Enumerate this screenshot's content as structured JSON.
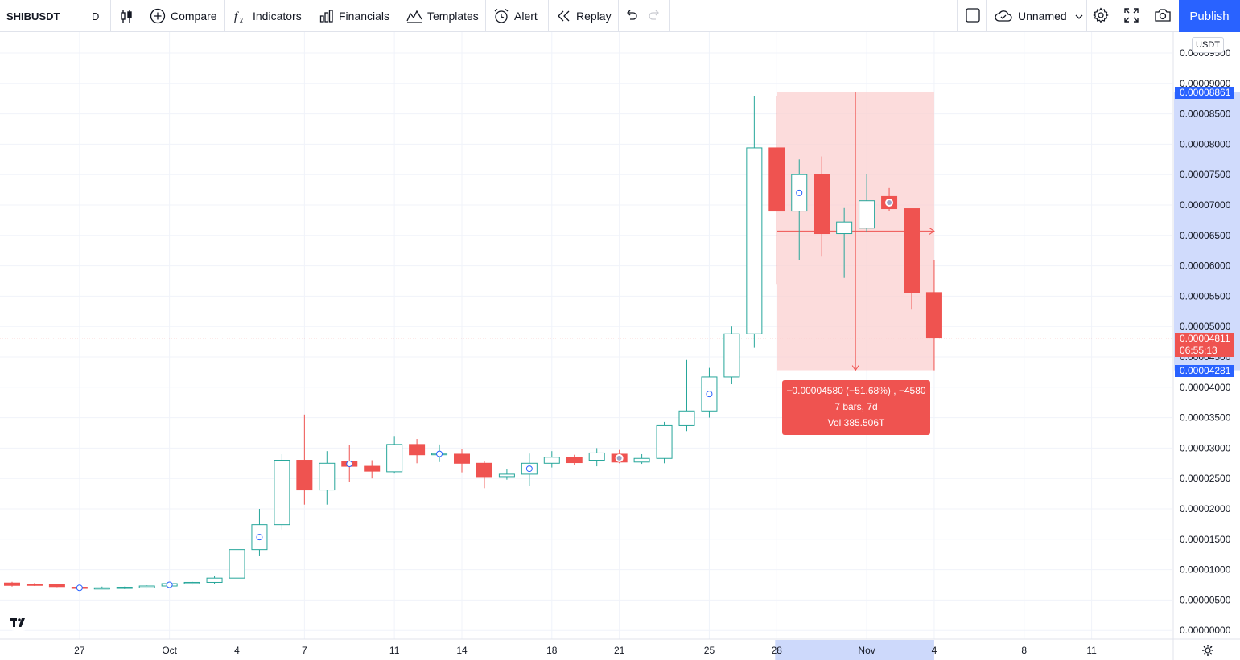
{
  "toolbar": {
    "symbol": "SHIBUSDT",
    "interval": "D",
    "compare_label": "Compare",
    "indicators_label": "Indicators",
    "financials_label": "Financials",
    "templates_label": "Templates",
    "alert_label": "Alert",
    "replay_label": "Replay",
    "layout_name": "Unnamed",
    "publish_label": "Publish"
  },
  "currency_label": "USDT",
  "measure": {
    "line1": "−0.00004580 (−51.68%) , −4580",
    "line2": "7 bars, 7d",
    "line3": "Vol 385.506T"
  },
  "price_tags": {
    "high": "0.00008861",
    "current": "0.00004811",
    "countdown": "06:55:13",
    "low": "0.00004281"
  },
  "colors": {
    "up": "#26a69a",
    "down": "#ef5350",
    "accent": "#2962ff",
    "range_fill": "#fbd0d0",
    "axis_highlight": "#c8d5fb"
  },
  "chart_data": {
    "type": "candlestick",
    "symbol": "SHIBUSDT",
    "interval": "D",
    "y_ticks": [
      "0.00000000",
      "0.00000500",
      "0.00001000",
      "0.00001500",
      "0.00002000",
      "0.00002500",
      "0.00003000",
      "0.00003500",
      "0.00004000",
      "0.00004500",
      "0.00005000",
      "0.00005500",
      "0.00006000",
      "0.00006500",
      "0.00007000",
      "0.00007500",
      "0.00008000",
      "0.00008500",
      "0.00009000",
      "0.00009500"
    ],
    "x_ticks": [
      {
        "label": "27",
        "idx": 3
      },
      {
        "label": "Oct",
        "idx": 7
      },
      {
        "label": "4",
        "idx": 10
      },
      {
        "label": "7",
        "idx": 13
      },
      {
        "label": "11",
        "idx": 17
      },
      {
        "label": "14",
        "idx": 20
      },
      {
        "label": "18",
        "idx": 24
      },
      {
        "label": "21",
        "idx": 27
      },
      {
        "label": "25",
        "idx": 31
      },
      {
        "label": "28",
        "idx": 34
      },
      {
        "label": "Nov",
        "idx": 38
      },
      {
        "label": "4",
        "idx": 41
      },
      {
        "label": "8",
        "idx": 45
      },
      {
        "label": "11",
        "idx": 48
      }
    ],
    "candles": [
      {
        "o": 7.8e-06,
        "h": 8e-06,
        "l": 7.2e-06,
        "c": 7.4e-06
      },
      {
        "o": 7.6e-06,
        "h": 7.8e-06,
        "l": 7.3e-06,
        "c": 7.4e-06
      },
      {
        "o": 7.5e-06,
        "h": 7.6e-06,
        "l": 7.1e-06,
        "c": 7.2e-06
      },
      {
        "o": 7.1e-06,
        "h": 7.3e-06,
        "l": 6.6e-06,
        "c": 6.9e-06
      },
      {
        "o": 6.9e-06,
        "h": 7.2e-06,
        "l": 6.8e-06,
        "c": 7e-06
      },
      {
        "o": 6.9e-06,
        "h": 7.2e-06,
        "l": 6.8e-06,
        "c": 7.1e-06
      },
      {
        "o": 7e-06,
        "h": 7.4e-06,
        "l": 6.9e-06,
        "c": 7.3e-06
      },
      {
        "o": 7.3e-06,
        "h": 7.8e-06,
        "l": 7.1e-06,
        "c": 7.7e-06
      },
      {
        "o": 7.7e-06,
        "h": 8.1e-06,
        "l": 7.5e-06,
        "c": 7.9e-06
      },
      {
        "o": 7.9e-06,
        "h": 9e-06,
        "l": 7.7e-06,
        "c": 8.6e-06
      },
      {
        "o": 8.6e-06,
        "h": 1.53e-05,
        "l": 8.4e-06,
        "c": 1.33e-05
      },
      {
        "o": 1.33e-05,
        "h": 2e-05,
        "l": 1.22e-05,
        "c": 1.74e-05
      },
      {
        "o": 1.74e-05,
        "h": 2.9e-05,
        "l": 1.66e-05,
        "c": 2.8e-05
      },
      {
        "o": 2.8e-05,
        "h": 3.55e-05,
        "l": 2.07e-05,
        "c": 2.31e-05
      },
      {
        "o": 2.31e-05,
        "h": 2.95e-05,
        "l": 2.07e-05,
        "c": 2.75e-05
      },
      {
        "o": 2.78e-05,
        "h": 3.05e-05,
        "l": 2.45e-05,
        "c": 2.7e-05
      },
      {
        "o": 2.7e-05,
        "h": 2.8e-05,
        "l": 2.5e-05,
        "c": 2.62e-05
      },
      {
        "o": 2.61e-05,
        "h": 3.2e-05,
        "l": 2.58e-05,
        "c": 3.06e-05
      },
      {
        "o": 3.06e-05,
        "h": 3.15e-05,
        "l": 2.75e-05,
        "c": 2.89e-05
      },
      {
        "o": 2.9e-05,
        "h": 3.06e-05,
        "l": 2.77e-05,
        "c": 2.91e-05
      },
      {
        "o": 2.9e-05,
        "h": 2.98e-05,
        "l": 2.6e-05,
        "c": 2.75e-05
      },
      {
        "o": 2.75e-05,
        "h": 2.78e-05,
        "l": 2.34e-05,
        "c": 2.53e-05
      },
      {
        "o": 2.53e-05,
        "h": 2.65e-05,
        "l": 2.48e-05,
        "c": 2.57e-05
      },
      {
        "o": 2.57e-05,
        "h": 2.91e-05,
        "l": 2.38e-05,
        "c": 2.75e-05
      },
      {
        "o": 2.75e-05,
        "h": 2.95e-05,
        "l": 2.68e-05,
        "c": 2.85e-05
      },
      {
        "o": 2.85e-05,
        "h": 2.89e-05,
        "l": 2.72e-05,
        "c": 2.76e-05
      },
      {
        "o": 2.8e-05,
        "h": 3e-05,
        "l": 2.7e-05,
        "c": 2.92e-05
      },
      {
        "o": 2.9e-05,
        "h": 2.97e-05,
        "l": 2.75e-05,
        "c": 2.77e-05
      },
      {
        "o": 2.77e-05,
        "h": 2.9e-05,
        "l": 2.74e-05,
        "c": 2.83e-05
      },
      {
        "o": 2.83e-05,
        "h": 3.43e-05,
        "l": 2.75e-05,
        "c": 3.37e-05
      },
      {
        "o": 3.37e-05,
        "h": 4.45e-05,
        "l": 3.28e-05,
        "c": 3.61e-05
      },
      {
        "o": 3.61e-05,
        "h": 4.32e-05,
        "l": 3.5e-05,
        "c": 4.17e-05
      },
      {
        "o": 4.17e-05,
        "h": 5e-05,
        "l": 4.05e-05,
        "c": 4.88e-05
      },
      {
        "o": 4.88e-05,
        "h": 8.79e-05,
        "l": 4.65e-05,
        "c": 7.94e-05
      },
      {
        "o": 7.94e-05,
        "h": 8.79e-05,
        "l": 5.7e-05,
        "c": 6.9e-05
      },
      {
        "o": 6.9e-05,
        "h": 7.75e-05,
        "l": 6.1e-05,
        "c": 7.5e-05
      },
      {
        "o": 7.5e-05,
        "h": 7.8e-05,
        "l": 6.15e-05,
        "c": 6.53e-05
      },
      {
        "o": 6.53e-05,
        "h": 6.95e-05,
        "l": 5.8e-05,
        "c": 6.72e-05
      },
      {
        "o": 6.62e-05,
        "h": 7.51e-05,
        "l": 6.55e-05,
        "c": 7.07e-05
      },
      {
        "o": 7.14e-05,
        "h": 7.28e-05,
        "l": 6.9e-05,
        "c": 6.94e-05
      },
      {
        "o": 6.94e-05,
        "h": 6.94e-05,
        "l": 5.29e-05,
        "c": 5.56e-05
      },
      {
        "o": 5.56e-05,
        "h": 6.1e-05,
        "l": 4.28e-05,
        "c": 4.81e-05
      }
    ]
  }
}
